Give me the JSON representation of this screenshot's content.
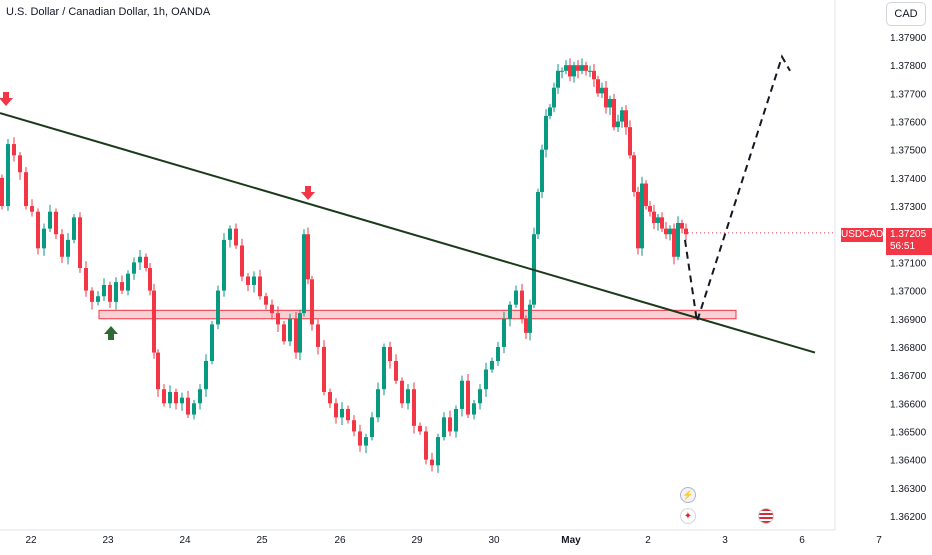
{
  "header": {
    "title": "U.S. Dollar / Canadian Dollar, 1h, OANDA"
  },
  "currency_button": {
    "label": "CAD"
  },
  "price_tag": {
    "symbol": "USDCAD",
    "price": "1.37205",
    "countdown": "56:51"
  },
  "y_axis": {
    "labels": [
      "1.37900",
      "1.37800",
      "1.37700",
      "1.37600",
      "1.37500",
      "1.37400",
      "1.37300",
      "1.37100",
      "1.37000",
      "1.36900",
      "1.36800",
      "1.36700",
      "1.36600",
      "1.36500",
      "1.36400",
      "1.36300",
      "1.36200"
    ]
  },
  "x_axis": {
    "labels": [
      "22",
      "23",
      "24",
      "25",
      "26",
      "29",
      "30",
      "May",
      "2",
      "3",
      "6",
      "7"
    ]
  },
  "events": {
    "news_icon": "lightning-icon",
    "ca_icon": "canada-flag-icon",
    "us_icon": "us-flag-icon"
  },
  "colors": {
    "up": "#089981",
    "down": "#f23645",
    "trendline": "#1b3a1b",
    "zone": "#f6c5cb",
    "zone_border": "#f23645",
    "arrow_down": "#f23645",
    "arrow_up": "#2e6b32"
  },
  "chart_data": {
    "type": "candlestick",
    "title": "U.S. Dollar / Canadian Dollar, 1h, OANDA",
    "ylim": [
      1.3617,
      1.3795
    ],
    "support_zone": [
      1.369,
      1.3693
    ],
    "trendline": [
      [
        0,
        1.3763
      ],
      [
        815,
        1.3678
      ]
    ],
    "projection": [
      [
        685,
        1.3718
      ],
      [
        697,
        1.3689
      ],
      [
        782,
        1.3783
      ],
      [
        790,
        1.3778
      ]
    ],
    "last_price": 1.37205
  }
}
